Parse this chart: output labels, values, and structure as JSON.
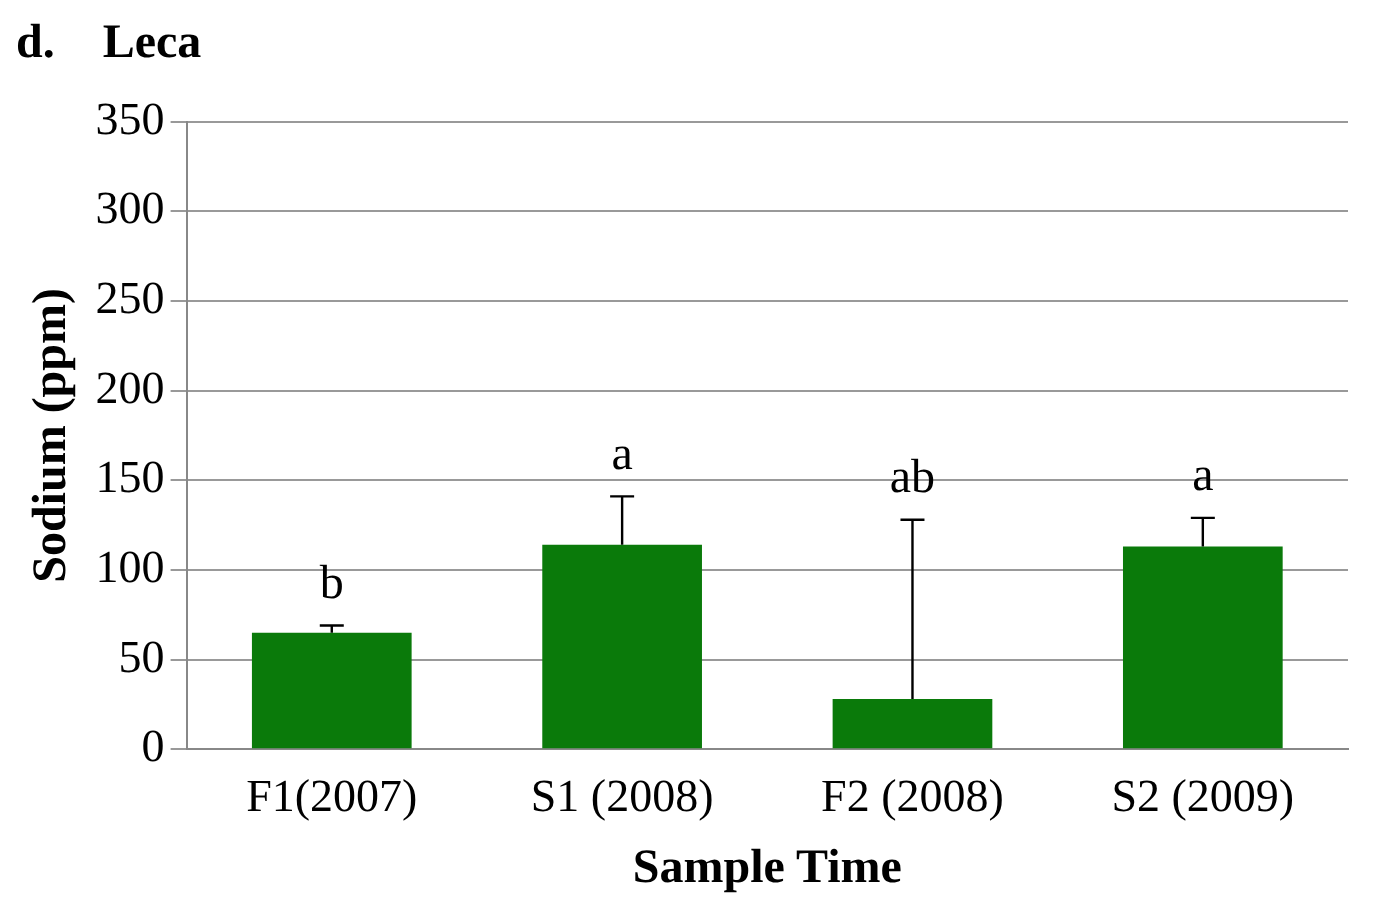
{
  "chart_data": {
    "type": "bar",
    "title": "d.    Leca",
    "xlabel": "Sample Time",
    "ylabel": "Sodium (ppm)",
    "categories": [
      "F1(2007)",
      "S1 (2008)",
      "F2 (2008)",
      "S2 (2009)"
    ],
    "values": [
      65,
      114,
      28,
      113
    ],
    "color": "#0a7a0a",
    "errors": [
      [
        65,
        69
      ],
      [
        114,
        141
      ],
      [
        28,
        128
      ],
      [
        113,
        129
      ]
    ],
    "ylim": [
      0,
      350
    ],
    "yticks": [
      0,
      50,
      100,
      150,
      200,
      250,
      300,
      350
    ],
    "grid": "y",
    "legend": false,
    "annotations": [
      {
        "text": "b",
        "x": "F1(2007)",
        "y": 69
      },
      {
        "text": "a",
        "x": "S1 (2008)",
        "y": 141
      },
      {
        "text": "ab",
        "x": "F2 (2008)",
        "y": 128
      },
      {
        "text": "a",
        "x": "S2 (2009)",
        "y": 129
      }
    ]
  }
}
